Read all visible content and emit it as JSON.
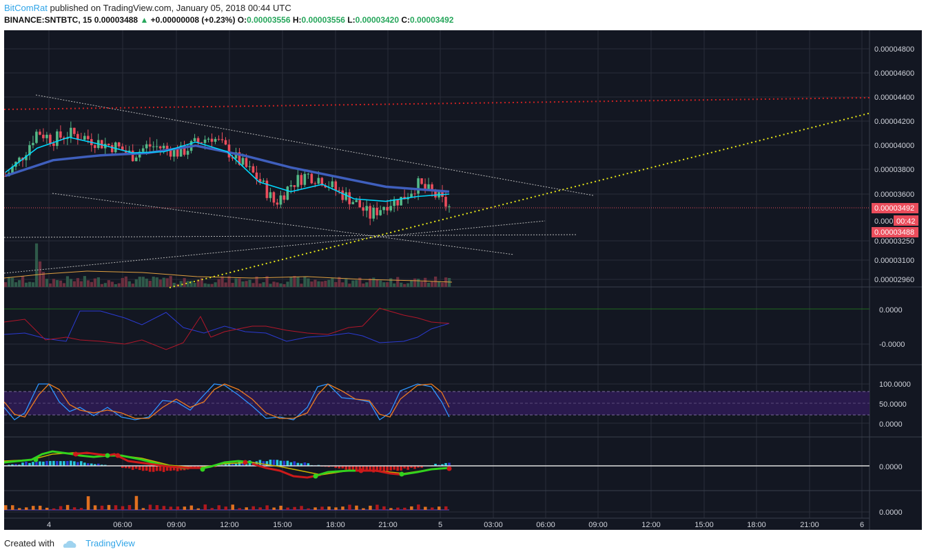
{
  "header": {
    "author": "BitComRat",
    "published_text": "published on TradingView.com, January 05, 2018 00:44 UTC",
    "symbol": "BINANCE:SNTBTC, 15",
    "last": "0.00003488",
    "change": "+0.00000008 (+0.23%)",
    "o_label": "O:",
    "o_value": "0.00003556",
    "h_label": "H:",
    "h_value": "0.00003556",
    "l_label": "L:",
    "l_value": "0.00003420",
    "c_label": "C:",
    "c_value": "0.00003492"
  },
  "footer": {
    "created_with": "Created with",
    "brand": "TradingView"
  },
  "colors": {
    "background": "#131722",
    "grid": "#2a2e39",
    "up": "#53b987",
    "down": "#eb4d5c",
    "ema_fast": "#00d8ff",
    "ma_slow": "#3f5fbd",
    "resistance_dotted": "#cc2222",
    "support_dotted": "#e6e619",
    "trend_lines": "#b7b7b7"
  },
  "chart_data": {
    "type": "candlestick",
    "title": "BINANCE:SNTBTC, 15",
    "x_tick_labels": [
      "4",
      "06:00",
      "09:00",
      "12:00",
      "15:00",
      "18:00",
      "21:00",
      "5",
      "03:00",
      "06:00",
      "09:00",
      "12:00",
      "15:00",
      "18:00",
      "21:00",
      "6"
    ],
    "x_range_hours": [
      0,
      54
    ],
    "price_axis": {
      "tick_labels": [
        "0.00004800",
        "0.00004600",
        "0.00004400",
        "0.00004200",
        "0.00004000",
        "0.00003800",
        "0.00003600",
        "0.00003250",
        "0.00003100",
        "0.00002960"
      ],
      "range": [
        2.9e-05,
        4.9e-05
      ]
    },
    "current_price": {
      "close_label": "0.00003492",
      "countdown_prefix": "0.000",
      "countdown": "00:42",
      "last_label": "0.00003488",
      "value": 3.492e-05
    },
    "series": [
      {
        "name": "Price (approx. close)",
        "x": [
          0,
          1,
          2,
          3,
          4,
          5,
          6,
          7,
          8,
          9,
          10,
          11,
          12,
          13,
          14,
          15,
          16,
          17,
          18,
          19,
          20,
          21,
          22,
          23,
          24,
          25,
          26,
          27,
          28
        ],
        "values": [
          3.75e-05,
          3.9e-05,
          4.12e-05,
          4.05e-05,
          4.1e-05,
          4.07e-05,
          4.02e-05,
          3.99e-05,
          3.92e-05,
          4e-05,
          3.98e-05,
          3.94e-05,
          4.02e-05,
          4.08e-05,
          3.96e-05,
          3.84e-05,
          3.72e-05,
          3.52e-05,
          3.68e-05,
          3.76e-05,
          3.72e-05,
          3.62e-05,
          3.54e-05,
          3.42e-05,
          3.52e-05,
          3.56e-05,
          3.68e-05,
          3.6e-05,
          3.49e-05
        ]
      },
      {
        "name": "Fast EMA",
        "x": [
          0,
          2,
          4,
          6,
          8,
          10,
          12,
          14,
          16,
          18,
          20,
          22,
          24,
          26,
          28
        ],
        "values": [
          3.78e-05,
          3.98e-05,
          4.07e-05,
          4.01e-05,
          3.94e-05,
          3.95e-05,
          4.03e-05,
          3.95e-05,
          3.7e-05,
          3.62e-05,
          3.68e-05,
          3.56e-05,
          3.54e-05,
          3.58e-05,
          3.6e-05
        ]
      },
      {
        "name": "Slow MA",
        "x": [
          0,
          3,
          6,
          9,
          12,
          15,
          18,
          21,
          24,
          28
        ],
        "values": [
          3.75e-05,
          3.88e-05,
          3.92e-05,
          3.94e-05,
          4e-05,
          3.92e-05,
          3.82e-05,
          3.74e-05,
          3.66e-05,
          3.62e-05
        ]
      }
    ],
    "indicators": [
      {
        "name": "Oscillator 1",
        "tick_labels": [
          "0.0000",
          "-0.0000"
        ]
      },
      {
        "name": "Stochastic RSI",
        "tick_labels": [
          "100.0000",
          "50.0000",
          "0.0000"
        ],
        "band": [
          20,
          80
        ]
      },
      {
        "name": "MACD",
        "tick_labels": [
          "0.0000"
        ]
      },
      {
        "name": "Volume-type histogram",
        "tick_labels": [
          "0.0000"
        ]
      }
    ]
  }
}
